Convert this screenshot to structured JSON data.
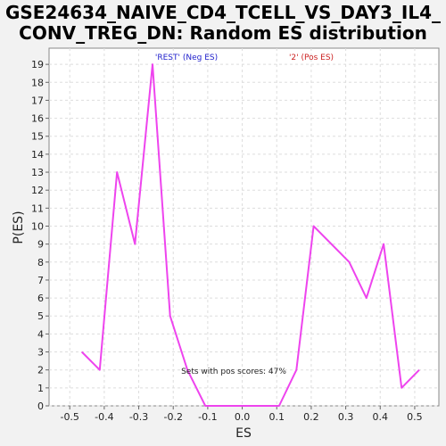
{
  "chart_data": {
    "type": "line",
    "title_line1": "GSE24634_NAIVE_CD4_TCELL_VS_DAY3_IL4_",
    "title_line2": "CONV_TREG_DN: Random ES distribution",
    "xlabel": "ES",
    "ylabel": "P(ES)",
    "xlim": [
      -0.56,
      0.57
    ],
    "ylim": [
      0,
      19.9
    ],
    "xticks": [
      "-0.5",
      "-0.4",
      "-0.3",
      "-0.2",
      "-0.1",
      "0.0",
      "0.1",
      "0.2",
      "0.3",
      "0.4",
      "0.5"
    ],
    "yticks": [
      "0",
      "1",
      "2",
      "3",
      "4",
      "5",
      "6",
      "7",
      "8",
      "9",
      "10",
      "11",
      "12",
      "13",
      "14",
      "15",
      "16",
      "17",
      "18",
      "19"
    ],
    "grid": true,
    "series": [
      {
        "color": "#ee44ee",
        "x": [
          -0.465,
          -0.413,
          -0.363,
          -0.311,
          -0.26,
          -0.209,
          -0.159,
          -0.107,
          -0.056,
          -0.005,
          0.107,
          0.157,
          0.207,
          0.31,
          0.36,
          0.41,
          0.462,
          0.513
        ],
        "y": [
          3,
          2,
          13,
          9,
          19,
          5,
          2,
          0,
          0,
          0,
          0,
          2,
          10,
          8,
          6,
          9,
          1,
          2
        ]
      }
    ],
    "legend": [
      {
        "label": "'REST' (Neg ES)",
        "color": "#2222cc"
      },
      {
        "label": "'2' (Pos ES)",
        "color": "#cc2222"
      }
    ],
    "annotation": "Sets with pos scores: 47%"
  }
}
